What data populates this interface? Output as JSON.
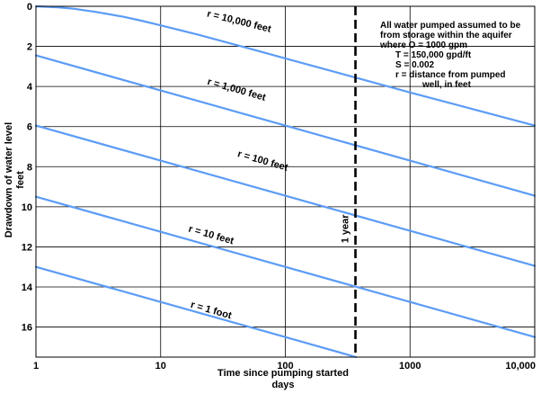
{
  "chart_data": {
    "type": "line",
    "xlabel": [
      "Time since pumping started",
      "days"
    ],
    "ylabel": [
      "Drawdown of water level",
      "feet"
    ],
    "xscale": "log",
    "yaxis": "inverted",
    "xlim": [
      1,
      10000
    ],
    "ylim": [
      0,
      17.5
    ],
    "grid": true,
    "x_ticks": [
      {
        "value": 1,
        "label": "1"
      },
      {
        "value": 10,
        "label": "10"
      },
      {
        "value": 100,
        "label": "100"
      },
      {
        "value": 1000,
        "label": "1000"
      },
      {
        "value": 10000,
        "label": "10,000"
      }
    ],
    "y_ticks": [
      {
        "value": 0,
        "label": "0"
      },
      {
        "value": 2,
        "label": "2"
      },
      {
        "value": 4,
        "label": "4"
      },
      {
        "value": 6,
        "label": "6"
      },
      {
        "value": 8,
        "label": "8"
      },
      {
        "value": 10,
        "label": "10"
      },
      {
        "value": 12,
        "label": "12"
      },
      {
        "value": 14,
        "label": "14"
      },
      {
        "value": 16,
        "label": "16"
      }
    ],
    "line_color": "#5b9cf6",
    "series": [
      {
        "name": "r = 1 foot",
        "x": [
          1,
          10,
          100,
          370
        ],
        "y": [
          13.0,
          14.75,
          16.5,
          17.5
        ],
        "label_at": [
          25,
          15.3
        ],
        "label_angle": 16
      },
      {
        "name": "r = 10 feet",
        "x": [
          1,
          10,
          100,
          1000,
          10000
        ],
        "y": [
          9.5,
          11.25,
          13.0,
          14.75,
          16.5
        ],
        "label_at": [
          25,
          11.55
        ],
        "label_angle": 16
      },
      {
        "name": "r = 100 feet",
        "x": [
          1,
          10,
          100,
          1000,
          10000
        ],
        "y": [
          5.95,
          7.7,
          9.45,
          11.2,
          12.95
        ],
        "label_at": [
          65,
          7.85
        ],
        "label_angle": 16
      },
      {
        "name": "r = 1,000 feet",
        "x": [
          1,
          10,
          100,
          1000,
          10000
        ],
        "y": [
          2.45,
          4.2,
          5.95,
          7.7,
          9.45
        ],
        "label_at": [
          40,
          4.3
        ],
        "label_angle": 16
      },
      {
        "name": "r = 10,000 feet",
        "x": [
          1,
          1.5,
          2,
          3,
          5,
          7,
          10,
          20,
          50,
          100,
          1000,
          10000
        ],
        "y": [
          0.0,
          0.05,
          0.12,
          0.28,
          0.52,
          0.72,
          0.95,
          1.42,
          2.08,
          2.6,
          4.3,
          5.95
        ],
        "label_at": [
          42,
          0.9
        ],
        "label_angle": 14
      }
    ],
    "reference_lines": [
      {
        "x": 365,
        "label": "1 year",
        "style": "dashed"
      }
    ],
    "annotation": [
      "All water pumped assumed to be",
      "from storage within the aquifer",
      "where O = 1000 gpm",
      "T = 150,000 gpd/ft",
      "S = 0.002",
      "r = distance from pumped",
      "well, in feet"
    ]
  }
}
